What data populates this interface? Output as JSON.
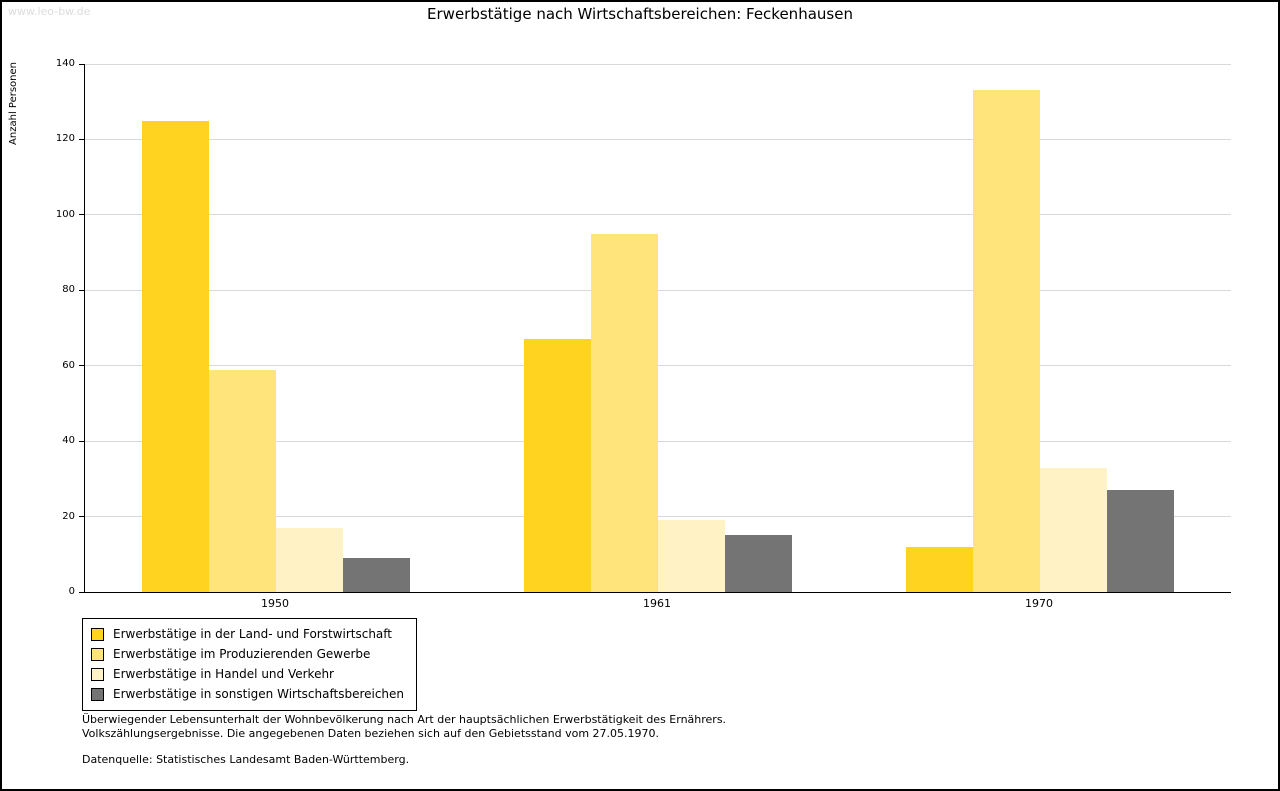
{
  "watermark": "www.leo-bw.de",
  "title": "Erwerbstätige nach Wirtschaftsbereichen: Feckenhausen",
  "chart_data": {
    "type": "bar",
    "categories": [
      "1950",
      "1961",
      "1970"
    ],
    "series": [
      {
        "name": "Erwerbstätige in der Land- und Forstwirtschaft",
        "color": "#ffd320",
        "values": [
          125,
          67,
          12
        ]
      },
      {
        "name": "Erwerbstätige im Produzierenden Gewerbe",
        "color": "#ffe47c",
        "values": [
          59,
          95,
          133
        ]
      },
      {
        "name": "Erwerbstätige in Handel und Verkehr",
        "color": "#fff3c6",
        "values": [
          17,
          19,
          33
        ]
      },
      {
        "name": "Erwerbstätige in sonstigen Wirtschaftsbereichen",
        "color": "#747474",
        "values": [
          9,
          15,
          27
        ]
      }
    ],
    "title": "Erwerbstätige nach Wirtschaftsbereichen: Feckenhausen",
    "xlabel": "",
    "ylabel": "Anzahl Personen",
    "ylim": [
      0,
      140
    ],
    "ytick_step": 20,
    "grid": true,
    "gridline_color": "#d9d9d9",
    "legend_position": "bottom-left"
  },
  "footnotes": {
    "line1": "Überwiegender Lebensunterhalt der Wohnbevölkerung nach Art der hauptsächlichen Erwerbstätigkeit des Ernährers.",
    "line2": "Volkszählungsergebnisse. Die angegebenen Daten beziehen sich auf den Gebietsstand vom 27.05.1970.",
    "source": "Datenquelle: Statistisches Landesamt Baden-Württemberg."
  }
}
